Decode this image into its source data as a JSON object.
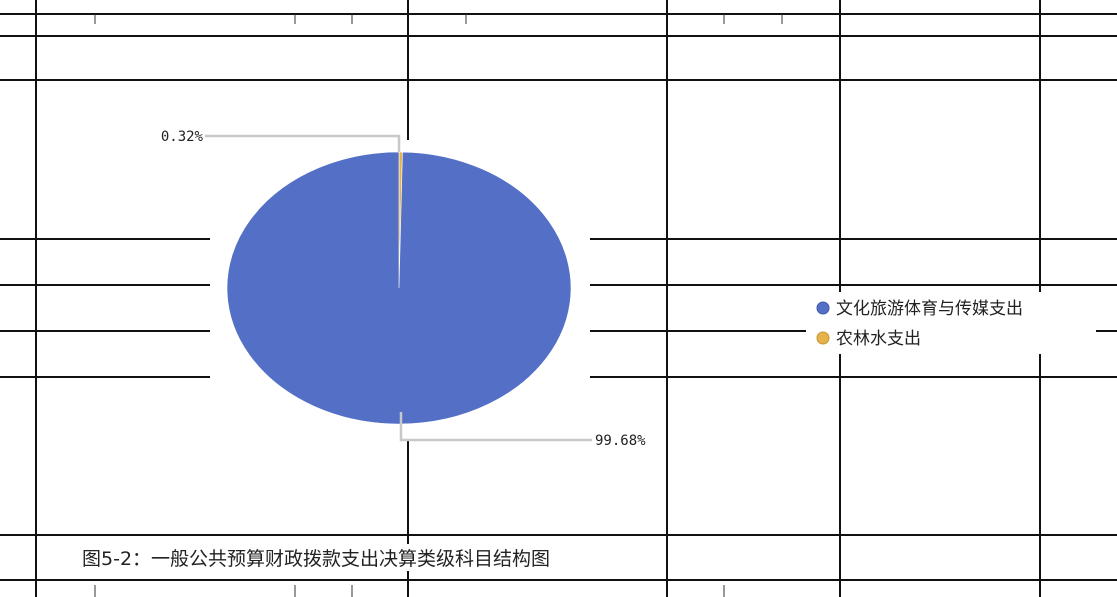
{
  "chart_data": {
    "type": "pie",
    "slices": [
      {
        "label": "文化旅游体育与传媒支出",
        "value": 99.68,
        "color": "#5470c6"
      },
      {
        "label": "农林水支出",
        "value": 0.32,
        "color": "#e6b34a"
      }
    ],
    "data_labels": [
      "99.68%",
      "0.32%"
    ],
    "legend_position": "right",
    "caption": "图5-2：一般公共预算财政拨款支出决算类级科目结构图"
  }
}
